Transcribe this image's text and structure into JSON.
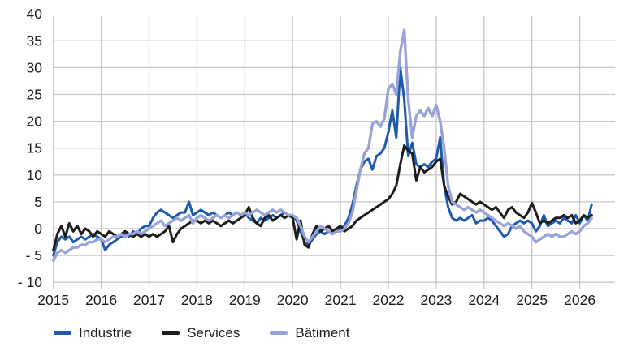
{
  "chart_data": {
    "type": "line",
    "title": "",
    "xlabel": "",
    "ylabel": "",
    "frequency": "monthly",
    "x_start": "2015-01",
    "x_end": "2026-04",
    "xlim": [
      2015,
      2026.75
    ],
    "ylim": [
      -10,
      40
    ],
    "grid": true,
    "grid_color": "#c7c7c7",
    "text_color": "#1d1d1b",
    "legend_position": "bottom",
    "x_tick_labels": [
      "2015",
      "2016",
      "2017",
      "2018",
      "2019",
      "2020",
      "2021",
      "2022",
      "2023",
      "2024",
      "2025",
      "2026"
    ],
    "y_ticks": [
      40,
      35,
      30,
      25,
      20,
      15,
      10,
      5,
      0,
      -5,
      -10
    ],
    "y_tick_labels": [
      "40",
      "35",
      "30",
      "25",
      "20",
      "15",
      "10",
      "5",
      "0",
      "- 5",
      "- 10"
    ],
    "series": [
      {
        "name": "Industrie",
        "color": "#1e5baa",
        "values": [
          -5,
          -2.5,
          -1.5,
          -2,
          -1.5,
          -2.5,
          -2,
          -1.5,
          -2,
          -1.5,
          -1,
          -1.5,
          -2,
          -4,
          -3,
          -2.5,
          -2,
          -1.5,
          -1,
          -1.5,
          -0.5,
          -1,
          0,
          0.5,
          0.5,
          2,
          3,
          3.5,
          3,
          2.5,
          2,
          2.5,
          3,
          3,
          5,
          2.5,
          3,
          3.5,
          3,
          2.5,
          3,
          2.5,
          2,
          2.5,
          3,
          2.5,
          3,
          2.5,
          3,
          2,
          1.5,
          1,
          2,
          1.5,
          2,
          2.5,
          2,
          2.5,
          3,
          2.5,
          2.5,
          1.5,
          -0.5,
          -2.5,
          -3,
          -2,
          -1,
          -0.5,
          -1,
          -0.5,
          -1,
          -0.5,
          0,
          0.5,
          2,
          4.5,
          8,
          11,
          12.5,
          13,
          11,
          13.5,
          14,
          15,
          18,
          22,
          17,
          30,
          24,
          13.5,
          16,
          12,
          11.5,
          12,
          11.5,
          12.5,
          13,
          17,
          8,
          4,
          2,
          1.5,
          2,
          1.5,
          2,
          2.5,
          1,
          1.5,
          1.5,
          2,
          1.5,
          0.5,
          -0.5,
          -1.5,
          -1,
          0.5,
          1,
          1.5,
          1,
          1.5,
          1,
          -0.5,
          0.5,
          2.5,
          0.5,
          1,
          1.5,
          1,
          2,
          1.5,
          1,
          2.5,
          1,
          2.5,
          1.5,
          4.5
        ]
      },
      {
        "name": "Services",
        "color": "#1d1d1b",
        "values": [
          -4,
          -1,
          0.5,
          -1.5,
          1,
          -0.5,
          0.5,
          -1,
          0,
          -0.5,
          -1.5,
          -0.5,
          -1,
          -1.5,
          -0.5,
          -1,
          -1.5,
          -1,
          -0.5,
          -1,
          -1.5,
          -1,
          -1.5,
          -1,
          -1.5,
          -1,
          -1.5,
          -1,
          -0.5,
          0.5,
          -2.5,
          -1,
          0,
          0.5,
          1,
          1.5,
          1.5,
          1,
          1.5,
          1,
          1.5,
          1,
          0.5,
          1,
          1.5,
          1,
          1.5,
          2,
          2.5,
          4,
          2,
          1,
          0.5,
          2,
          2.5,
          1.5,
          2,
          2.5,
          2,
          2.5,
          2,
          -2,
          1.5,
          -3,
          -3.5,
          -1,
          0.5,
          -0.5,
          0,
          0.5,
          -0.5,
          0,
          0.5,
          -0.5,
          0,
          0.5,
          1.5,
          2,
          2.5,
          3,
          3.5,
          4,
          4.5,
          5,
          5.5,
          6.5,
          8,
          12,
          15.5,
          14.5,
          14,
          9,
          11.5,
          10.5,
          11,
          11.5,
          12.5,
          13,
          8,
          6,
          4.5,
          5,
          6.5,
          6,
          5.5,
          5,
          4.5,
          5,
          4.5,
          4,
          3.5,
          4,
          3,
          2,
          3.5,
          4,
          3,
          2.5,
          2,
          3,
          4.8,
          3,
          1,
          1.5,
          1,
          1.5,
          2,
          2,
          2.5,
          2,
          2.5,
          1,
          1.5,
          2.5,
          2,
          2.5
        ]
      },
      {
        "name": "Bâtiment",
        "color": "#9aa3d8",
        "values": [
          -6,
          -4.5,
          -4,
          -4.5,
          -4,
          -3.5,
          -3.5,
          -3,
          -3,
          -2.5,
          -2.5,
          -2,
          -2,
          -2.5,
          -2,
          -1.5,
          -1.5,
          -1,
          -1.5,
          -1,
          -1,
          -0.5,
          -1,
          -0.5,
          0,
          0.5,
          1,
          1.5,
          0.5,
          1,
          1.5,
          2,
          1.5,
          2,
          2.5,
          1,
          2,
          2.5,
          2,
          1.5,
          2,
          2.5,
          2,
          2.5,
          2,
          2.5,
          3,
          2.5,
          3,
          2.5,
          3,
          3.5,
          3,
          2.5,
          3,
          3.5,
          3,
          3.5,
          3,
          2.5,
          2.5,
          2,
          0.5,
          -1.5,
          -2.5,
          -1.5,
          -0.5,
          0.5,
          0,
          -0.5,
          -1,
          -0.5,
          -0.5,
          0,
          1,
          3,
          7,
          11,
          14,
          15,
          19.5,
          20,
          19,
          20.5,
          26,
          27,
          25,
          33,
          37,
          24,
          17,
          21,
          22,
          21,
          22.5,
          21,
          23,
          20,
          15,
          8,
          5,
          4.5,
          4,
          3.5,
          4,
          3.5,
          3,
          3.5,
          3,
          2.5,
          2,
          1.5,
          1,
          0.5,
          1,
          0.5,
          0,
          0.5,
          -0.5,
          -1,
          -1.5,
          -2.5,
          -2,
          -1.5,
          -1,
          -1.5,
          -1,
          -1.5,
          -1.5,
          -1,
          -0.5,
          -1,
          -0.5,
          0.5,
          1,
          2
        ]
      }
    ]
  },
  "legend": {
    "items": [
      {
        "label": "Industrie",
        "color": "#1e5baa"
      },
      {
        "label": "Services",
        "color": "#1d1d1b"
      },
      {
        "label": "Bâtiment",
        "color": "#9aa3d8"
      }
    ]
  }
}
